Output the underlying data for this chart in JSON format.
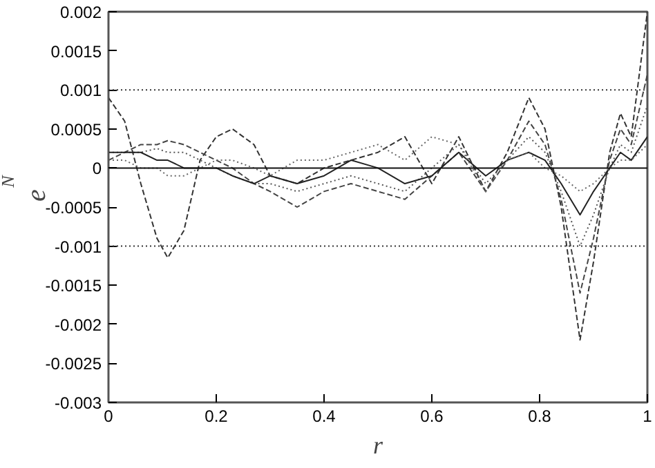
{
  "chart_data": {
    "type": "line",
    "xlabel": "r",
    "ylabel": "e$_{N}$",
    "x": [
      0,
      0.03,
      0.06,
      0.09,
      0.11,
      0.14,
      0.17,
      0.2,
      0.23,
      0.27,
      0.3,
      0.35,
      0.4,
      0.45,
      0.5,
      0.55,
      0.6,
      0.65,
      0.7,
      0.74,
      0.78,
      0.81,
      0.84,
      0.875,
      0.9,
      0.93,
      0.95,
      0.97,
      1
    ],
    "series": [
      {
        "color": "#333333",
        "line_style": "dashed",
        "values": [
          0.0009,
          0.0006,
          -0.0002,
          -0.0009,
          -0.00115,
          -0.0008,
          0.0001,
          0.0004,
          0.0005,
          0.0003,
          -0.0001,
          -0.0002,
          0.0,
          0.0001,
          0.0002,
          0.0004,
          -0.0002,
          0.0004,
          -0.0003,
          0.0002,
          0.0009,
          0.0005,
          -0.0005,
          -0.0022,
          -0.0012,
          0.0002,
          0.0007,
          0.0004,
          0.002
        ]
      },
      {
        "color": "#444444",
        "line_style": "dashed",
        "values": [
          0.0001,
          0.0002,
          0.0003,
          0.0003,
          0.00035,
          0.0003,
          0.0002,
          0.0001,
          0.0,
          -0.0002,
          -0.0003,
          -0.0005,
          -0.0003,
          -0.0002,
          -0.0003,
          -0.0004,
          -0.0001,
          0.0002,
          -0.0003,
          0.0001,
          0.0006,
          0.0003,
          -0.0004,
          -0.0016,
          -0.0009,
          0.0001,
          0.0005,
          0.0003,
          0.0012
        ]
      },
      {
        "color": "#555555",
        "line_style": "dotted",
        "values": [
          0.0002,
          0.0002,
          0.0002,
          0.00025,
          0.0002,
          0.0002,
          0.0001,
          0.0,
          -0.0001,
          -0.0002,
          -0.0002,
          -0.0003,
          -0.0002,
          -0.0001,
          -0.0002,
          -0.0003,
          0.0,
          0.0003,
          -0.0002,
          0.0001,
          0.0004,
          0.0002,
          -0.0003,
          -0.001,
          -0.0006,
          0.0,
          0.0003,
          0.0002,
          0.0008
        ]
      },
      {
        "color": "#222222",
        "line_style": "solid",
        "values": [
          0.0002,
          0.0002,
          0.0002,
          0.0001,
          0.0001,
          0.0,
          0.0,
          0.0,
          -0.0001,
          -0.0002,
          -0.0001,
          -0.0002,
          -0.0001,
          0.0001,
          0.0,
          -0.0002,
          -0.0001,
          0.0002,
          -0.0001,
          0.0001,
          0.0002,
          0.0001,
          -0.0002,
          -0.0006,
          -0.0003,
          0.0,
          0.0002,
          0.0001,
          0.0004
        ]
      },
      {
        "color": "#666666",
        "line_style": "dotted",
        "values": [
          0.0001,
          0.0001,
          0.0,
          0.0,
          -0.0001,
          -0.0001,
          0.0,
          0.0001,
          0.0001,
          0.0,
          -0.0001,
          0.0001,
          0.0001,
          0.0002,
          0.0003,
          0.0001,
          0.0004,
          0.0003,
          -0.0003,
          0.0001,
          0.0002,
          0.0,
          -0.0001,
          -0.0003,
          -0.0002,
          0.0,
          0.0001,
          0.0001,
          0.0003
        ]
      },
      {
        "color": "#111111",
        "line_style": "solid",
        "values": [
          0.0,
          0.0,
          0.0,
          0.0,
          0.0,
          0.0,
          0.0,
          0.0,
          0.0,
          0.0,
          0.0,
          0.0,
          0.0,
          0.0,
          0.0,
          0.0,
          0.0,
          0.0,
          0.0,
          0.0,
          0.0,
          0.0,
          0.0,
          0.0,
          0.0,
          0.0,
          0.0,
          0.0,
          0.0
        ]
      }
    ],
    "xlim": [
      0,
      1
    ],
    "ylim": [
      -0.003,
      0.002
    ],
    "xticks": [
      0,
      0.2,
      0.4,
      0.6,
      0.8,
      1
    ],
    "yticks": [
      -0.003,
      -0.0025,
      -0.002,
      -0.0015,
      -0.001,
      -0.0005,
      0,
      0.0005,
      0.001,
      0.0015,
      0.002
    ],
    "ref_lines": [
      {
        "axis": "y",
        "value": 0.001,
        "line_style": "dotted",
        "color": "#333333"
      },
      {
        "axis": "y",
        "value": -0.001,
        "line_style": "dotted",
        "color": "#333333"
      }
    ],
    "grid": false
  }
}
